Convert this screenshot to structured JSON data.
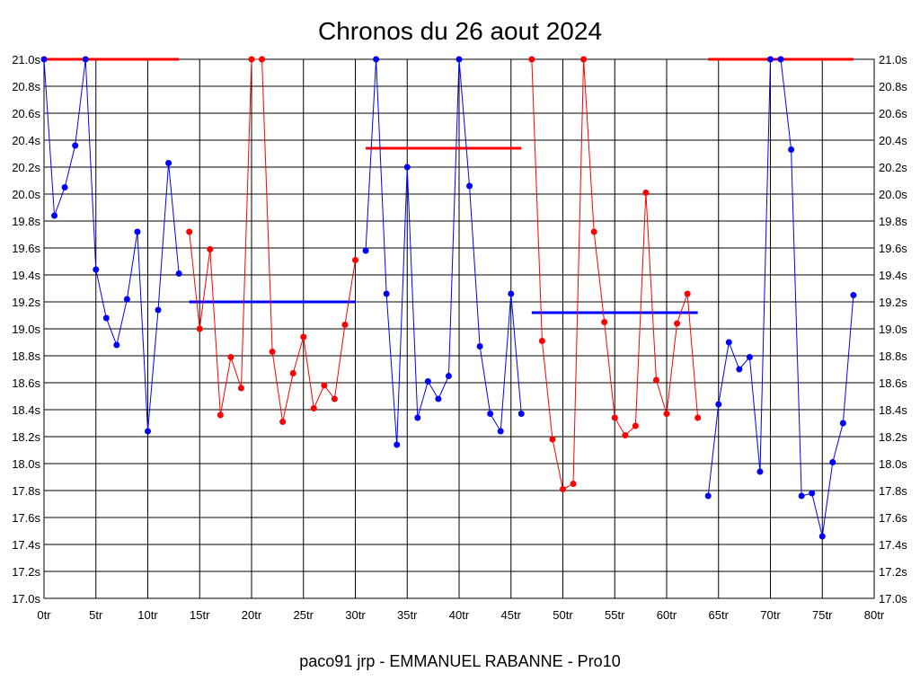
{
  "chart_data": {
    "type": "line",
    "title": "Chronos du 26 aout 2024",
    "footer": "paco91 jrp - EMMANUEL RABANNE - Pro10",
    "xlim": [
      0,
      80
    ],
    "ylim": [
      17.0,
      21.0
    ],
    "x_ticks": [
      0,
      5,
      10,
      15,
      20,
      25,
      30,
      35,
      40,
      45,
      50,
      55,
      60,
      65,
      70,
      75,
      80
    ],
    "x_tick_labels": [
      "0tr",
      "5tr",
      "10tr",
      "15tr",
      "20tr",
      "25tr",
      "30tr",
      "35tr",
      "40tr",
      "45tr",
      "50tr",
      "55tr",
      "60tr",
      "65tr",
      "70tr",
      "75tr",
      "80tr"
    ],
    "y_ticks": [
      17.0,
      17.2,
      17.4,
      17.6,
      17.8,
      18.0,
      18.2,
      18.4,
      18.6,
      18.8,
      19.0,
      19.2,
      19.4,
      19.6,
      19.8,
      20.0,
      20.2,
      20.4,
      20.6,
      20.8,
      21.0
    ],
    "y_tick_labels": [
      "17.0s",
      "17.2s",
      "17.4s",
      "17.6s",
      "17.8s",
      "18.0s",
      "18.2s",
      "18.4s",
      "18.6s",
      "18.8s",
      "19.0s",
      "19.2s",
      "19.4s",
      "19.6s",
      "19.8s",
      "20.0s",
      "20.2s",
      "20.4s",
      "20.6s",
      "20.8s",
      "21.0s"
    ],
    "grid": true,
    "series": [
      {
        "color": "#0000ff",
        "x": [
          0,
          1,
          2,
          3,
          4,
          5,
          6,
          7,
          8,
          9,
          10,
          11,
          12,
          13
        ],
        "y": [
          21.0,
          19.84,
          20.05,
          20.36,
          21.0,
          19.44,
          19.08,
          18.88,
          19.22,
          19.72,
          18.24,
          19.14,
          20.23,
          19.41
        ]
      },
      {
        "color": "#ff0000",
        "x": [
          14,
          15,
          16,
          17,
          18,
          19,
          20,
          21,
          22,
          23,
          24,
          25,
          26,
          27,
          28,
          29,
          30
        ],
        "y": [
          19.72,
          19.0,
          19.59,
          18.36,
          18.79,
          18.56,
          21.0,
          21.0,
          18.83,
          18.31,
          18.67,
          18.94,
          18.41,
          18.58,
          18.48,
          19.03,
          19.51
        ]
      },
      {
        "color": "#0000ff",
        "x": [
          31,
          32,
          33,
          34,
          35,
          36,
          37,
          38,
          39,
          40,
          41,
          42,
          43,
          44,
          45,
          46
        ],
        "y": [
          19.58,
          21.0,
          19.26,
          18.14,
          20.2,
          18.34,
          18.61,
          18.48,
          18.65,
          21.0,
          20.06,
          18.87,
          18.37,
          18.24,
          19.26,
          18.37
        ]
      },
      {
        "color": "#ff0000",
        "x": [
          47,
          48,
          49,
          50,
          51,
          52,
          53,
          54,
          55,
          56,
          57,
          58,
          59,
          60,
          61,
          62,
          63
        ],
        "y": [
          21.0,
          18.91,
          18.18,
          17.81,
          17.85,
          21.0,
          19.72,
          19.05,
          18.34,
          18.21,
          18.28,
          20.01,
          18.62,
          18.37,
          19.04,
          19.26,
          18.34
        ]
      },
      {
        "color": "#0000ff",
        "x": [
          64,
          65,
          66,
          67,
          68,
          69,
          70,
          71,
          72,
          73,
          74,
          75,
          76,
          77,
          78
        ],
        "y": [
          17.76,
          18.44,
          18.9,
          18.7,
          18.79,
          17.94,
          21.0,
          21.0,
          20.33,
          17.76,
          17.78,
          17.46,
          18.01,
          18.3,
          19.25
        ]
      }
    ],
    "reference_lines": [
      {
        "color": "#ff0000",
        "x": [
          0,
          13
        ],
        "y": 21.0
      },
      {
        "color": "#0000ff",
        "x": [
          14,
          30
        ],
        "y": 19.2
      },
      {
        "color": "#ff0000",
        "x": [
          31,
          46
        ],
        "y": 20.34
      },
      {
        "color": "#0000ff",
        "x": [
          47,
          63
        ],
        "y": 19.12
      },
      {
        "color": "#ff0000",
        "x": [
          64,
          78
        ],
        "y": 21.0
      }
    ]
  }
}
